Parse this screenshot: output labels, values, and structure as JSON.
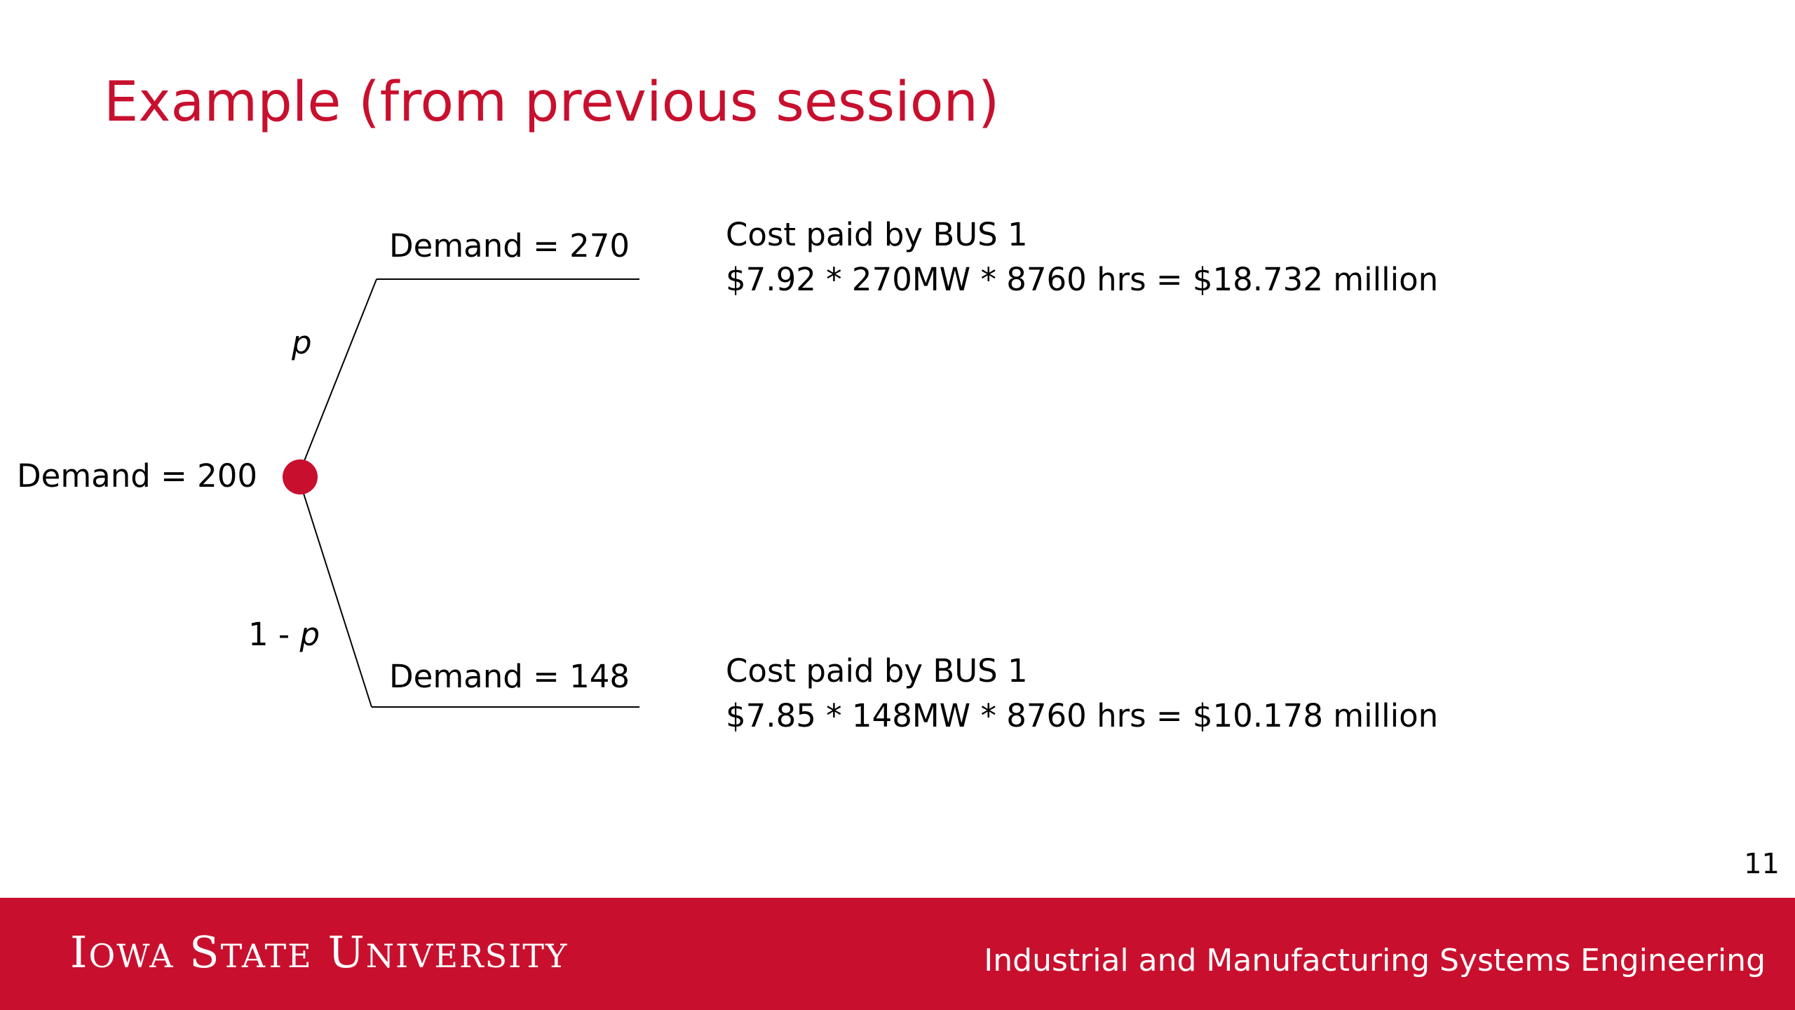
{
  "slide": {
    "title": "Example (from previous session)",
    "page_number": "11"
  },
  "colors": {
    "accent": "#c8102e",
    "text": "#000000",
    "background": "#ffffff"
  },
  "tree": {
    "root_label": "Demand = 200",
    "upper_probability": "p",
    "lower_probability_prefix": "1 - ",
    "lower_probability_var": "p",
    "upper_branch": {
      "label": "Demand = 270",
      "cost_heading": "Cost paid by BUS 1",
      "cost_formula": "$7.92 * 270MW * 8760 hrs = $18.732 million"
    },
    "lower_branch": {
      "label": "Demand = 148",
      "cost_heading": "Cost paid by BUS 1",
      "cost_formula": "$7.85 * 148MW * 8760 hrs = $10.178 million"
    }
  },
  "footer": {
    "logo_text": "Iowa State University",
    "department": "Industrial and Manufacturing Systems Engineering"
  }
}
